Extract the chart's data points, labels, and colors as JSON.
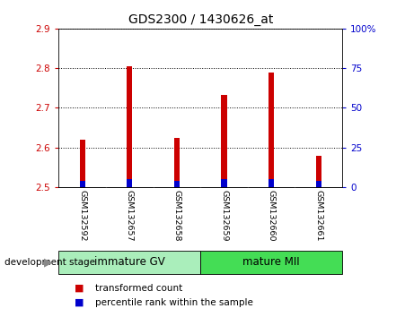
{
  "title": "GDS2300 / 1430626_at",
  "samples": [
    "GSM132592",
    "GSM132657",
    "GSM132658",
    "GSM132659",
    "GSM132660",
    "GSM132661"
  ],
  "transformed_counts": [
    2.62,
    2.805,
    2.625,
    2.732,
    2.79,
    2.578
  ],
  "percentile_ranks_pct": [
    4,
    5,
    4,
    5,
    5,
    4
  ],
  "ylim_left": [
    2.5,
    2.9
  ],
  "ylim_right": [
    0,
    100
  ],
  "yticks_left": [
    2.5,
    2.6,
    2.7,
    2.8,
    2.9
  ],
  "yticks_right": [
    0,
    25,
    50,
    75,
    100
  ],
  "ytick_labels_right": [
    "0",
    "25",
    "50",
    "75",
    "100%"
  ],
  "bar_color_red": "#cc0000",
  "bar_color_blue": "#0000cc",
  "base_value": 2.5,
  "left_tick_color": "#cc0000",
  "right_tick_color": "#0000cc",
  "bar_width": 0.12,
  "groups": [
    {
      "label": "immature GV",
      "indices": [
        0,
        1,
        2
      ],
      "bg_color": "#aaeebb"
    },
    {
      "label": "mature MII",
      "indices": [
        3,
        4,
        5
      ],
      "bg_color": "#44dd55"
    }
  ],
  "legend_items": [
    {
      "label": "transformed count",
      "color": "#cc0000"
    },
    {
      "label": "percentile rank within the sample",
      "color": "#0000cc"
    }
  ],
  "dev_stage_label": "development stage",
  "sample_cell_color": "#d3d3d3",
  "sample_cell_border": "#ffffff"
}
